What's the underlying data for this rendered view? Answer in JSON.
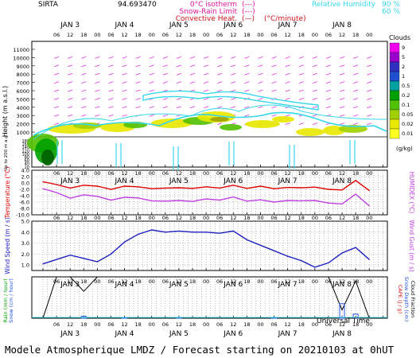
{
  "header": {
    "station": "SIRTA",
    "coords": "94.693470",
    "legend_left": [
      {
        "label": "0°C isotherm",
        "sym": "(---)",
        "color": "#e0139c"
      },
      {
        "label": "Snow-Rain Limit",
        "sym": "(---)",
        "color": "#e0139c"
      },
      {
        "label": "Convective Heat.",
        "sym": "(—)",
        "color": "#d0101a"
      }
    ],
    "convective_unit": "(°C/minute)",
    "legend_right": {
      "label": "Relative Humidity",
      "values": [
        "90 %",
        "60 %"
      ],
      "color": "#35d8e8"
    }
  },
  "days": [
    "JAN 3",
    "JAN 4",
    "JAN 5",
    "JAN 6",
    "JAN 7",
    "JAN 8"
  ],
  "hour_ticks": [
    "06",
    "12",
    "18",
    "00"
  ],
  "footer": {
    "universal_time": "Universal Time",
    "caption": "Modele Atmospherique LMDZ / Forecast starting on 20210103 at 0hUT"
  },
  "clouds_colorbar": {
    "title": "Clouds",
    "unit": "(g/kg)",
    "levels": [
      "9",
      "5",
      "2",
      "1",
      "0.5",
      "0.2",
      "0.1",
      "0.05",
      "0.02",
      "0.01"
    ],
    "colors": [
      "#ee00ee",
      "#9900cc",
      "#3030c0",
      "#2050d0",
      "#00a0a0",
      "#00a000",
      "#50c000",
      "#a0d000",
      "#e8e800",
      "#ffff20"
    ]
  },
  "chart_data": [
    {
      "type": "heatmap",
      "panel": "clouds",
      "ylabel": "Height (m a.s.l.)",
      "ylabel2": "Up to 200 m a.g.l.",
      "yticks": [
        "11000",
        "10000",
        "9000",
        "8000",
        "7000",
        "6000",
        "5000",
        "4000",
        "3000",
        "2000",
        "1000",
        "180",
        "160",
        "140",
        "120",
        "100",
        "80",
        "60",
        "40",
        "20"
      ],
      "rh_lines": [
        "90 %",
        "60 %"
      ],
      "cloud_band_m": [
        1000,
        3000
      ]
    },
    {
      "type": "line",
      "panel": "temperature",
      "ylabel": "Temperature (°C)",
      "ylabel_right": "HUMIDEX (°C)",
      "yticks": [
        "4.0",
        "2.0",
        "0.0",
        "-2.0",
        "-4.0",
        "-6.0",
        "-8.0",
        "-10.0"
      ],
      "ylim": [
        -10,
        4
      ],
      "x_hours": [
        0,
        6,
        12,
        18,
        24,
        30,
        36,
        42,
        48,
        54,
        60,
        66,
        72,
        78,
        84,
        90,
        96,
        102,
        108,
        114,
        120,
        126,
        132,
        138,
        144
      ],
      "series": [
        {
          "name": "Temperature",
          "color": "#e00000",
          "values": [
            0.4,
            -0.5,
            -1.6,
            -0.7,
            -1.0,
            -2.0,
            -1.0,
            -1.2,
            -1.8,
            -1.6,
            -1.5,
            -1.7,
            -1.2,
            -1.6,
            -0.7,
            -1.7,
            -1.0,
            -1.8,
            -1.4,
            -1.5,
            -1.3,
            -2.0,
            -2.2,
            0.8,
            -2.4
          ]
        },
        {
          "name": "HUMIDEX",
          "color": "#c040e0",
          "values": [
            -1.8,
            -3.0,
            -4.8,
            -3.7,
            -4.2,
            -5.4,
            -4.5,
            -4.7,
            -5.6,
            -5.7,
            -5.5,
            -5.8,
            -5.0,
            -5.4,
            -4.4,
            -5.7,
            -5.3,
            -6.0,
            -5.5,
            -5.6,
            -5.5,
            -6.3,
            -6.6,
            -3.5,
            -7.2
          ]
        }
      ]
    },
    {
      "type": "line",
      "panel": "wind",
      "ylabel": "Wind Speed (m / s)",
      "ylabel_right": "Wind Gust (m / s)",
      "yticks": [
        "5.0",
        "4.0",
        "3.0",
        "2.0",
        "1.0"
      ],
      "ylim": [
        0.5,
        5
      ],
      "x_hours": [
        0,
        6,
        12,
        18,
        24,
        30,
        36,
        42,
        48,
        54,
        60,
        66,
        72,
        78,
        84,
        90,
        96,
        102,
        108,
        114,
        120,
        126,
        132,
        138,
        144
      ],
      "series": [
        {
          "name": "Wind Speed",
          "color": "#2020c0",
          "values": [
            1.1,
            1.5,
            1.9,
            1.6,
            1.3,
            2.0,
            3.1,
            3.8,
            4.2,
            4.0,
            4.1,
            4.0,
            4.0,
            3.9,
            4.1,
            3.3,
            2.8,
            2.3,
            1.8,
            1.4,
            0.8,
            1.2,
            2.1,
            2.6,
            1.5
          ]
        }
      ]
    },
    {
      "type": "bar",
      "panel": "precipitation",
      "ylabel_left": [
        "Rain (mm / hour)",
        "Snow (cm / hour)"
      ],
      "ylabel_right": [
        "CAPE (J / g)",
        "Snow Depth (cm)",
        "Cloud Fraction"
      ],
      "x_hours": [
        0,
        6,
        12,
        18,
        24,
        30,
        36,
        42,
        48,
        54,
        60,
        66,
        72,
        78,
        84,
        90,
        96,
        102,
        108,
        114,
        120,
        126,
        132,
        138,
        144
      ],
      "series": [
        {
          "name": "Cloud Fraction",
          "color": "#000000",
          "values": [
            0.0,
            1.0,
            1.0,
            0.65,
            1.0,
            1.0,
            1.0,
            1.0,
            1.0,
            1.0,
            1.0,
            1.0,
            1.0,
            1.0,
            1.0,
            1.0,
            1.0,
            1.0,
            1.0,
            1.0,
            1.0,
            1.0,
            0.2,
            0.9,
            0.0
          ]
        },
        {
          "name": "Rain",
          "color": "#2050e0",
          "values": [
            0.0,
            0.0,
            0.0,
            0.05,
            0.0,
            0.0,
            0.02,
            0.0,
            0.0,
            0.0,
            0.02,
            0.0,
            0.0,
            0.0,
            0.0,
            0.0,
            0.0,
            0.02,
            0.0,
            0.0,
            0.0,
            0.0,
            0.35,
            0.1,
            0.0
          ]
        }
      ]
    }
  ]
}
